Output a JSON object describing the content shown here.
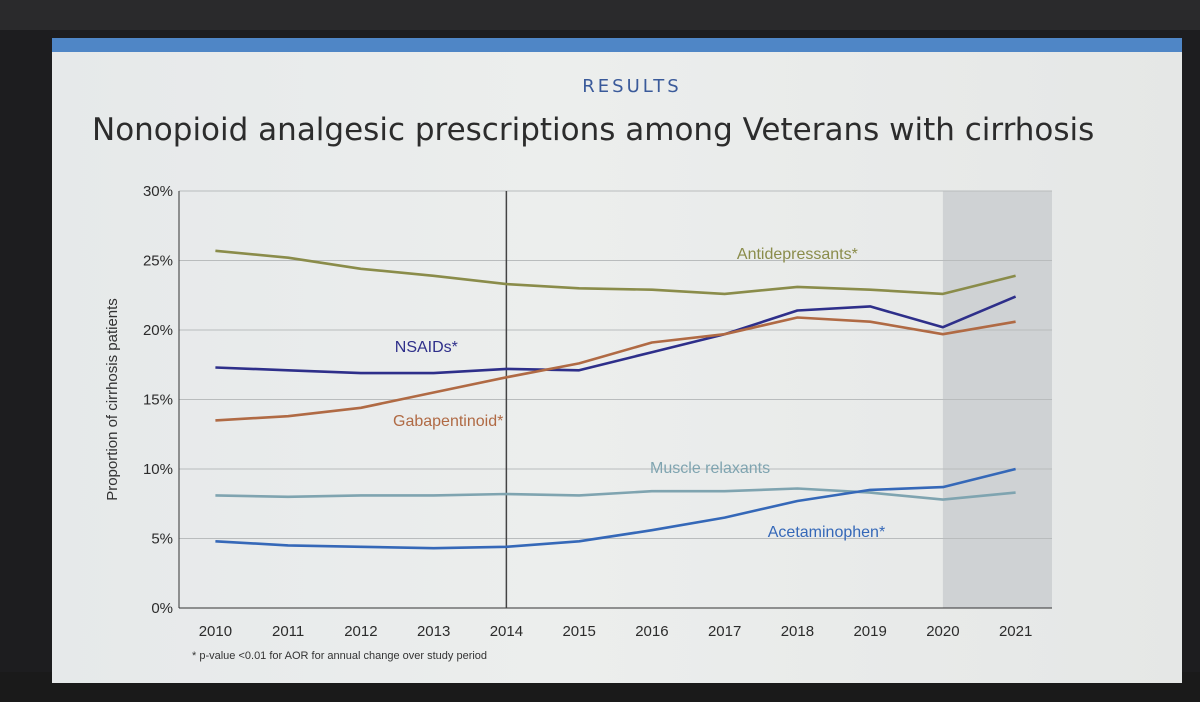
{
  "slide": {
    "section": "RESULTS",
    "title": "Nonopioid analgesic prescriptions among Veterans with cirrhosis",
    "footnote": "* p-value <0.01 for AOR for annual change over study period"
  },
  "colors": {
    "topbar": "#4f86c6",
    "antidepressants": "#8a8c4a",
    "nsaids": "#2e2f8a",
    "gabapentinoid": "#b06a44",
    "muscle_relaxants": "#7fa4b0",
    "acetaminophen": "#3568b8"
  },
  "chart_data": {
    "type": "line",
    "x": [
      "2010",
      "2011",
      "2012",
      "2013",
      "2014",
      "2015",
      "2016",
      "2017",
      "2018",
      "2019",
      "2020",
      "2021"
    ],
    "ylabel": "Proportion of cirrhosis patients",
    "ylim": [
      0,
      30
    ],
    "yticks": [
      "0%",
      "5%",
      "10%",
      "15%",
      "20%",
      "25%",
      "30%"
    ],
    "grid": true,
    "reference_line_x": "2014",
    "shaded_from_x": "2020",
    "series": [
      {
        "key": "antidepressants",
        "name": "Antidepressants*",
        "values": [
          25.7,
          25.2,
          24.4,
          23.9,
          23.3,
          23.0,
          22.9,
          22.6,
          23.1,
          22.9,
          22.6,
          23.9
        ]
      },
      {
        "key": "nsaids",
        "name": "NSAIDs*",
        "values": [
          17.3,
          17.1,
          16.9,
          16.9,
          17.2,
          17.1,
          18.4,
          19.7,
          21.4,
          21.7,
          20.2,
          22.4
        ]
      },
      {
        "key": "gabapentinoid",
        "name": "Gabapentinoid*",
        "values": [
          13.5,
          13.8,
          14.4,
          15.5,
          16.6,
          17.6,
          19.1,
          19.7,
          20.9,
          20.6,
          19.7,
          20.6
        ]
      },
      {
        "key": "muscle_relaxants",
        "name": "Muscle relaxants",
        "values": [
          8.1,
          8.0,
          8.1,
          8.1,
          8.2,
          8.1,
          8.4,
          8.4,
          8.6,
          8.3,
          7.8,
          8.3
        ]
      },
      {
        "key": "acetaminophen",
        "name": "Acetaminophen*",
        "values": [
          4.8,
          4.5,
          4.4,
          4.3,
          4.4,
          4.8,
          5.6,
          6.5,
          7.7,
          8.5,
          8.7,
          10.0
        ]
      }
    ]
  }
}
